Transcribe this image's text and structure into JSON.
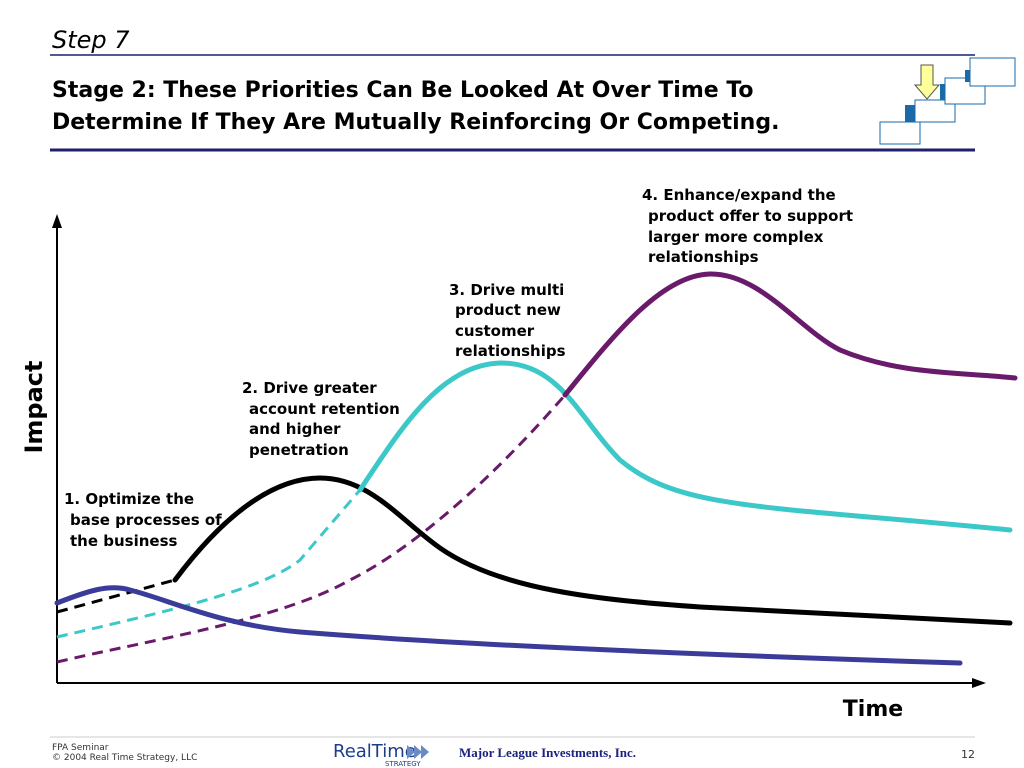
{
  "header": {
    "step": "Step 7",
    "title": [
      "Stage 2: These Priorities Can Be Looked At Over Time To",
      "Determine If They Are Mutually Reinforcing Or Competing."
    ]
  },
  "diagram": {
    "y_axis_label": "Impact",
    "x_axis_label": "Time",
    "annotations": [
      [
        "1.  Optimize the",
        "base processes of",
        "the business"
      ],
      [
        "2. Drive  greater",
        "account retention",
        "and higher",
        "penetration"
      ],
      [
        "3. Drive multi",
        "product new",
        "customer",
        "relationships"
      ],
      [
        "4. Enhance/expand the",
        "product offer to support",
        "larger more complex",
        "relationships"
      ]
    ]
  },
  "footer": {
    "left": [
      "FPA Seminar",
      "© 2004 Real Time Strategy, LLC"
    ],
    "logo": [
      "RealTime",
      "STRATEGY"
    ],
    "company": "Major League Investments, Inc.",
    "page": "12"
  }
}
